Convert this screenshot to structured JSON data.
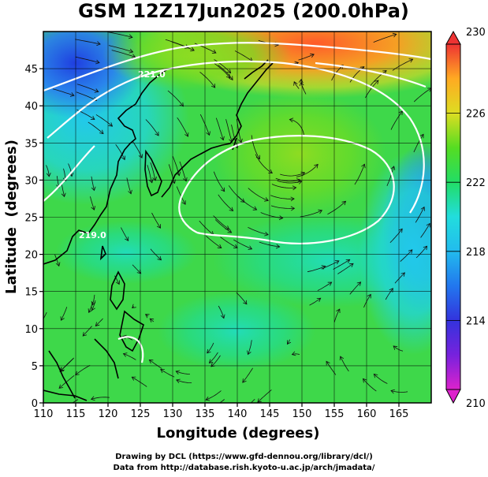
{
  "title": "GSM 12Z17Jun2025 (200.0hPa)",
  "credits": {
    "line1": "Drawing by DCL (https://www.gfd-dennou.org/library/dcl/)",
    "line2": "Data from http://database.rish.kyoto-u.ac.jp/arch/jmadata/"
  },
  "chart_data": {
    "type": "heatmap",
    "title": "GSM 12Z17Jun2025 (200.0hPa)",
    "xlabel": "Longitude (degrees)",
    "ylabel": "Latitude  (degrees)",
    "xlim": [
      110,
      170
    ],
    "ylim": [
      0,
      50
    ],
    "x_ticks": [
      110,
      115,
      120,
      125,
      130,
      135,
      140,
      145,
      150,
      155,
      160,
      165
    ],
    "y_ticks": [
      0,
      5,
      10,
      15,
      20,
      25,
      30,
      35,
      40,
      45
    ],
    "grid": true,
    "colorbar": {
      "position": "right",
      "range": [
        210,
        230
      ],
      "ticks": [
        210,
        214,
        218,
        222,
        226,
        230
      ],
      "colors": [
        "#dd22cc",
        "#3333dd",
        "#2277ee",
        "#22bbee",
        "#22dddd",
        "#22dd66",
        "#55dd22",
        "#aadd22",
        "#dddd22",
        "#ffaa22",
        "#ff6633",
        "#ee3333"
      ]
    },
    "field_samples": [
      {
        "lon": 115,
        "lat": 47,
        "value": 213
      },
      {
        "lon": 122,
        "lat": 38,
        "value": 216
      },
      {
        "lon": 128,
        "lat": 48,
        "value": 222
      },
      {
        "lon": 140,
        "lat": 48,
        "value": 225
      },
      {
        "lon": 155,
        "lat": 48,
        "value": 228
      },
      {
        "lon": 148,
        "lat": 35,
        "value": 222
      },
      {
        "lon": 150,
        "lat": 20,
        "value": 219
      },
      {
        "lon": 167,
        "lat": 27,
        "value": 216
      },
      {
        "lon": 140,
        "lat": 12,
        "value": 220
      },
      {
        "lon": 115,
        "lat": 10,
        "value": 221
      },
      {
        "lon": 120,
        "lat": 25,
        "value": 220
      }
    ],
    "contour_labels": [
      "221.0",
      "219.0"
    ]
  }
}
